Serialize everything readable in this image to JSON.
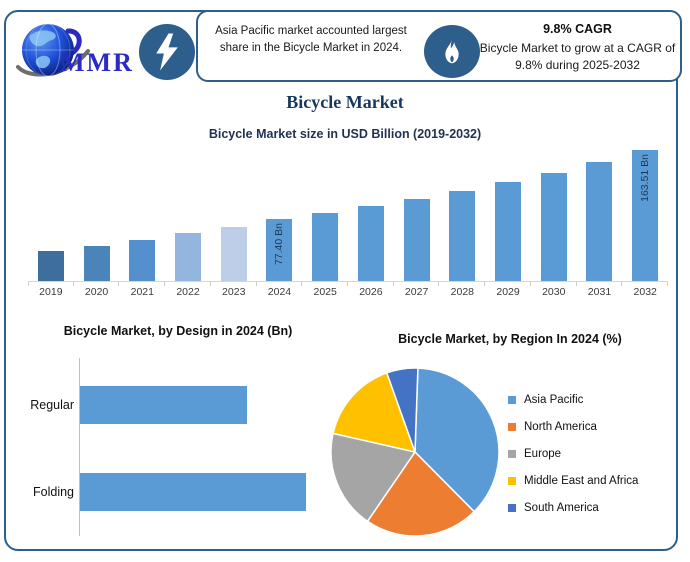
{
  "page": {
    "title": "Bicycle Market"
  },
  "logo": {
    "text": "MMR",
    "icon": "globe-with-swoosh"
  },
  "header": {
    "left_badge_icon": "lightning-bolt",
    "left_note": "Asia Pacific market accounted largest share in the Bicycle Market in 2024.",
    "right_badge_icon": "flame",
    "right_note_title": "9.8% CAGR",
    "right_note_text": "Bicycle Market to grow at a CAGR of 9.8% during 2025-2032"
  },
  "colors": {
    "frame_border": "#2E5F8A",
    "badge_circle": "#2D5E8C",
    "primary_bar": "#5B9BD5",
    "title_navy": "#17375E"
  },
  "chart_data": [
    {
      "type": "bar",
      "title": "Bicycle Market size in USD Billion (2019-2032)",
      "categories": [
        "2019",
        "2020",
        "2021",
        "2022",
        "2023",
        "2024",
        "2025",
        "2026",
        "2027",
        "2028",
        "2029",
        "2030",
        "2031",
        "2032"
      ],
      "values": [
        38,
        44,
        51,
        60,
        67,
        77.4,
        85,
        93.3,
        102.5,
        112.5,
        123.5,
        135.6,
        148.9,
        163.51
      ],
      "data_labels": {
        "2024": "77.40 Bn",
        "2032": "163.51 Bn"
      },
      "bar_colors": [
        "#3D6E9E",
        "#4B84B8",
        "#5490CE",
        "#94B6DE",
        "#BDCFE8",
        "#5B9BD5",
        "#5B9BD5",
        "#5B9BD5",
        "#5B9BD5",
        "#5B9BD5",
        "#5B9BD5",
        "#5B9BD5",
        "#5B9BD5",
        "#5B9BD5"
      ],
      "ylim": [
        0,
        175
      ],
      "xlabel": "",
      "ylabel": "",
      "grid": false,
      "legend": false
    },
    {
      "type": "bar",
      "orientation": "horizontal",
      "title": "Bicycle Market, by Design in 2024 (Bn)",
      "categories": [
        "Regular",
        "Folding"
      ],
      "values_relative": [
        0.74,
        1.0
      ],
      "bar_color": "#5B9BD5",
      "grid": false,
      "legend": false
    },
    {
      "type": "pie",
      "title": "Bicycle Market, by Region In 2024 (%)",
      "labels": [
        "Asia Pacific",
        "North America",
        "Europe",
        "Middle East and Africa",
        "South America"
      ],
      "values": [
        37,
        22,
        19,
        16,
        6
      ],
      "colors": [
        "#5B9BD5",
        "#ED7D31",
        "#A5A5A5",
        "#FFC000",
        "#4472C4"
      ],
      "legend_position": "right"
    }
  ]
}
